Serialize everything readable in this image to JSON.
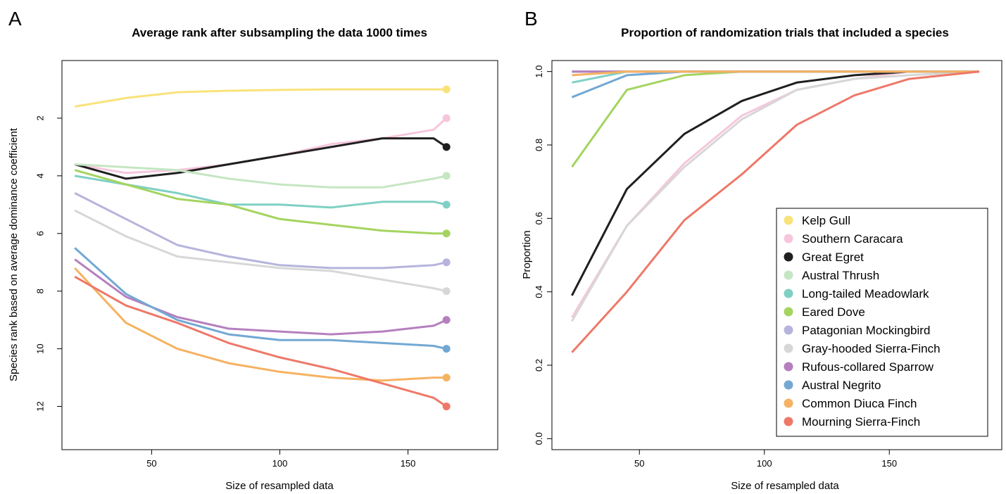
{
  "colors": {
    "Kelp Gull": "#f9e27a",
    "Southern Caracara": "#f6c6dc",
    "Great Egret": "#1f1f1f",
    "Austral Thrush": "#c5e6c3",
    "Long-tailed Meadowlark": "#7fd0c4",
    "Eared Dove": "#a4d45f",
    "Patagonian Mockingbird": "#b6b4dc",
    "Gray-hooded Sierra-Finch": "#d7d7d7",
    "Rufous-collared Sparrow": "#b57fbe",
    "Austral Negrito": "#72a8d3",
    "Common Diuca Finch": "#f6b261",
    "Mourning Sierra-Finch": "#ee7868"
  },
  "panels": {
    "a_letter": "A",
    "b_letter": "B"
  },
  "chart_data": [
    {
      "type": "line",
      "title": "Average rank after subsampling the data 1000 times",
      "xlabel": "Size of resampled data",
      "ylabel": "Species rank based on average dominance coefficient",
      "xlim": [
        15,
        185
      ],
      "ylim": [
        13.5,
        0
      ],
      "y_reversed": true,
      "xticks": [
        50,
        100,
        150
      ],
      "yticks": [
        2,
        4,
        6,
        8,
        10,
        12
      ],
      "grid": false,
      "final_point_markers": true,
      "x": [
        20,
        40,
        60,
        80,
        100,
        120,
        140,
        160,
        165
      ],
      "series": [
        {
          "name": "Kelp Gull",
          "values": [
            1.6,
            1.3,
            1.1,
            1.05,
            1.02,
            1.0,
            1.0,
            1.0,
            1.0
          ]
        },
        {
          "name": "Southern Caracara",
          "values": [
            3.6,
            3.9,
            3.8,
            3.6,
            3.3,
            2.9,
            2.7,
            2.4,
            2.0
          ]
        },
        {
          "name": "Great Egret",
          "values": [
            3.6,
            4.1,
            3.9,
            3.6,
            3.3,
            3.0,
            2.7,
            2.7,
            3.0
          ]
        },
        {
          "name": "Austral Thrush",
          "values": [
            3.6,
            3.7,
            3.8,
            4.1,
            4.3,
            4.4,
            4.4,
            4.1,
            4.0
          ]
        },
        {
          "name": "Long-tailed Meadowlark",
          "values": [
            4.0,
            4.3,
            4.6,
            5.0,
            5.0,
            5.1,
            4.9,
            4.9,
            5.0
          ]
        },
        {
          "name": "Eared Dove",
          "values": [
            3.8,
            4.3,
            4.8,
            5.0,
            5.5,
            5.7,
            5.9,
            6.0,
            6.0
          ]
        },
        {
          "name": "Patagonian Mockingbird",
          "values": [
            4.6,
            5.5,
            6.4,
            6.8,
            7.1,
            7.2,
            7.2,
            7.1,
            7.0
          ]
        },
        {
          "name": "Gray-hooded Sierra-Finch",
          "values": [
            5.2,
            6.1,
            6.8,
            7.0,
            7.2,
            7.3,
            7.6,
            7.9,
            8.0
          ]
        },
        {
          "name": "Rufous-collared Sparrow",
          "values": [
            6.9,
            8.2,
            8.9,
            9.3,
            9.4,
            9.5,
            9.4,
            9.2,
            9.0
          ]
        },
        {
          "name": "Austral Negrito",
          "values": [
            6.5,
            8.1,
            9.0,
            9.5,
            9.7,
            9.7,
            9.8,
            9.9,
            10.0
          ]
        },
        {
          "name": "Common Diuca Finch",
          "values": [
            7.2,
            9.1,
            10.0,
            10.5,
            10.8,
            11.0,
            11.1,
            11.0,
            11.0
          ]
        },
        {
          "name": "Mourning Sierra-Finch",
          "values": [
            7.5,
            8.5,
            9.1,
            9.8,
            10.3,
            10.7,
            11.2,
            11.7,
            12.0
          ]
        }
      ]
    },
    {
      "type": "line",
      "title": "Proportion of randomization trials that included a species",
      "xlabel": "Size of resampled data",
      "ylabel": "Proportion",
      "xlim": [
        15,
        195
      ],
      "ylim": [
        -0.03,
        1.03
      ],
      "xticks": [
        50,
        100,
        150
      ],
      "yticks": [
        0.0,
        0.2,
        0.4,
        0.6,
        0.8,
        1.0
      ],
      "ytick_labels": [
        "0.0",
        "0.2",
        "0.4",
        "0.6",
        "0.8",
        "1.0"
      ],
      "grid": false,
      "legend_position": "bottom-right",
      "x": [
        23,
        45,
        68,
        91,
        113,
        136,
        158,
        186
      ],
      "series": [
        {
          "name": "Kelp Gull",
          "values": [
            1.0,
            1.0,
            1.0,
            1.0,
            1.0,
            1.0,
            1.0,
            1.0
          ]
        },
        {
          "name": "Southern Caracara",
          "values": [
            0.33,
            0.58,
            0.75,
            0.88,
            0.95,
            0.98,
            1.0,
            1.0
          ]
        },
        {
          "name": "Great Egret",
          "values": [
            0.39,
            0.68,
            0.83,
            0.92,
            0.97,
            0.99,
            1.0,
            1.0
          ]
        },
        {
          "name": "Austral Thrush",
          "values": [
            1.0,
            1.0,
            1.0,
            1.0,
            1.0,
            1.0,
            1.0,
            1.0
          ]
        },
        {
          "name": "Long-tailed Meadowlark",
          "values": [
            0.97,
            1.0,
            1.0,
            1.0,
            1.0,
            1.0,
            1.0,
            1.0
          ]
        },
        {
          "name": "Eared Dove",
          "values": [
            0.74,
            0.95,
            0.99,
            1.0,
            1.0,
            1.0,
            1.0,
            1.0
          ]
        },
        {
          "name": "Patagonian Mockingbird",
          "values": [
            1.0,
            1.0,
            1.0,
            1.0,
            1.0,
            1.0,
            1.0,
            1.0
          ]
        },
        {
          "name": "Gray-hooded Sierra-Finch",
          "values": [
            0.32,
            0.58,
            0.74,
            0.87,
            0.95,
            0.98,
            0.99,
            1.0
          ]
        },
        {
          "name": "Rufous-collared Sparrow",
          "values": [
            1.0,
            1.0,
            1.0,
            1.0,
            1.0,
            1.0,
            1.0,
            1.0
          ]
        },
        {
          "name": "Austral Negrito",
          "values": [
            0.93,
            0.99,
            1.0,
            1.0,
            1.0,
            1.0,
            1.0,
            1.0
          ]
        },
        {
          "name": "Common Diuca Finch",
          "values": [
            0.99,
            1.0,
            1.0,
            1.0,
            1.0,
            1.0,
            1.0,
            1.0
          ]
        },
        {
          "name": "Mourning Sierra-Finch",
          "values": [
            0.235,
            0.4,
            0.595,
            0.72,
            0.855,
            0.935,
            0.98,
            1.0
          ]
        }
      ],
      "legend": [
        "Kelp Gull",
        "Southern Caracara",
        "Great Egret",
        "Austral Thrush",
        "Long-tailed Meadowlark",
        "Eared Dove",
        "Patagonian Mockingbird",
        "Gray-hooded Sierra-Finch",
        "Rufous-collared Sparrow",
        "Austral Negrito",
        "Common Diuca Finch",
        "Mourning Sierra-Finch"
      ]
    }
  ]
}
